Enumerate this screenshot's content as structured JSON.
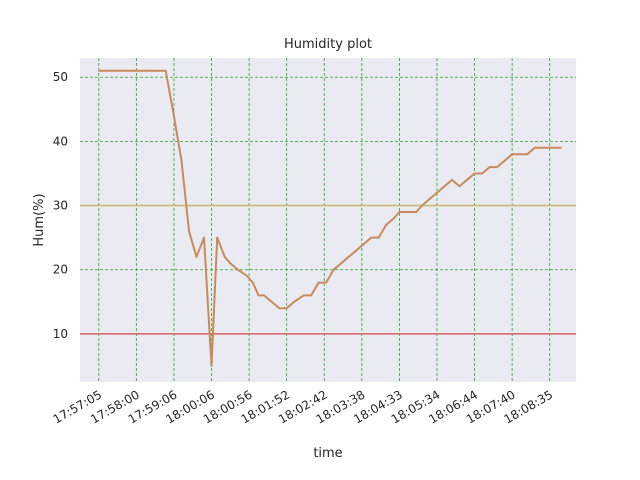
{
  "chart_data": {
    "type": "line",
    "title": "Humidity plot",
    "xlabel": "time",
    "ylabel": "Hum(%)",
    "xlim": [
      -0.5,
      12.7
    ],
    "ylim": [
      2.5,
      53
    ],
    "grid": true,
    "grid_style": "dashed",
    "grid_color": "#2ca02c",
    "background_color": "#eaeaf2",
    "x_ticks": [
      0,
      1,
      2,
      3,
      4,
      5,
      6,
      7,
      8,
      9,
      10,
      11,
      12
    ],
    "x_tick_labels": [
      "17:57:05",
      "17:58:00",
      "17:59:06",
      "18:00:06",
      "18:00:56",
      "18:01:52",
      "18:02:42",
      "18:03:38",
      "18:04:33",
      "18:05:34",
      "18:06:44",
      "18:07:40",
      "18:08:35"
    ],
    "y_ticks": [
      10,
      20,
      30,
      40,
      50
    ],
    "y_tick_labels": [
      "10",
      "20",
      "30",
      "40",
      "50"
    ],
    "reference_lines": [
      {
        "y": 10,
        "color": "#d65f5f"
      },
      {
        "y": 30,
        "color": "#ccb974"
      }
    ],
    "series": [
      {
        "color": "#c98a5b",
        "x": [
          0,
          0.35,
          0.7,
          1.05,
          1.4,
          1.78,
          2.0,
          2.2,
          2.4,
          2.6,
          2.8,
          3.0,
          3.15,
          3.35,
          3.5,
          3.7,
          3.95,
          4.1,
          4.25,
          4.4,
          4.6,
          4.8,
          5.0,
          5.2,
          5.45,
          5.65,
          5.85,
          6.05,
          6.25,
          6.45,
          6.65,
          6.85,
          7.05,
          7.25,
          7.45,
          7.65,
          7.85,
          8.0,
          8.2,
          8.45,
          8.6,
          8.8,
          9.0,
          9.2,
          9.4,
          9.6,
          9.8,
          10.0,
          10.2,
          10.4,
          10.6,
          10.8,
          11.0,
          11.2,
          11.4,
          11.6,
          11.8,
          12.0,
          12.15,
          12.3
        ],
        "values": [
          51,
          51,
          51,
          51,
          51,
          51,
          44,
          37,
          26,
          22,
          25,
          5,
          25,
          22,
          21,
          20,
          19,
          18,
          16,
          16,
          15,
          14,
          14,
          15,
          16,
          16,
          18,
          18,
          20,
          21,
          22,
          23,
          24,
          25,
          25,
          27,
          28,
          29,
          29,
          29,
          30,
          31,
          32,
          33,
          34,
          33,
          34,
          35,
          35,
          36,
          36,
          37,
          38,
          38,
          38,
          39,
          39,
          39,
          39,
          39
        ]
      }
    ]
  }
}
